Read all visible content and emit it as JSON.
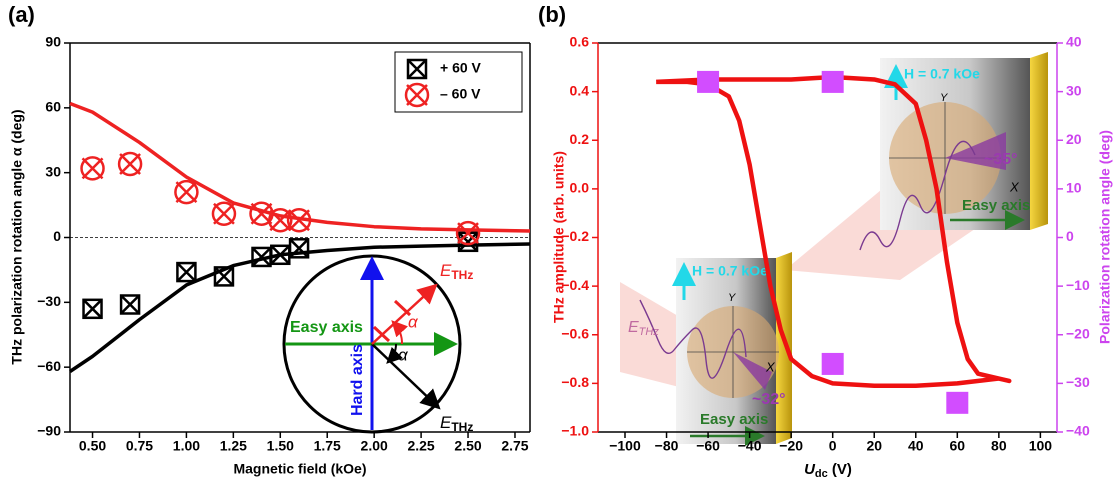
{
  "chart_data": [
    {
      "type": "scatter",
      "panel_label": "(a)",
      "xlabel": "Magnetic field (kOe)",
      "ylabel": "THz polarization rotation angle α (deg)",
      "xlim": [
        0.38,
        2.83
      ],
      "xticks": [
        {
          "value": 0.5,
          "label": "0.50"
        },
        0.75,
        {
          "value": 1,
          "label": "1.00"
        },
        1.25,
        {
          "value": 1.5,
          "label": "1.50"
        },
        1.75,
        {
          "value": 2,
          "label": "2.00"
        },
        2.25,
        {
          "value": 2.5,
          "label": "2.50"
        },
        2.75
      ],
      "ylim": [
        -90,
        90
      ],
      "yticks": [
        {
          "value": -90,
          "label": "−90"
        },
        {
          "value": -60,
          "label": "−60"
        },
        {
          "value": -30,
          "label": "−30"
        },
        0,
        30,
        60,
        90
      ],
      "zero_line": true,
      "legend": "upper right",
      "series": [
        {
          "name": "+ 60 V",
          "color": "#000000",
          "marker": "boxcross",
          "x": [
            0.5,
            0.7,
            1.0,
            1.2,
            1.4,
            1.5,
            1.6,
            2.5
          ],
          "values": [
            -33,
            -31,
            -16,
            -18,
            -9,
            -8,
            -5,
            -2
          ]
        },
        {
          "name": "– 60 V",
          "color": "#ee2222",
          "marker": "circlecross",
          "x": [
            0.5,
            0.7,
            1.0,
            1.2,
            1.4,
            1.5,
            1.6,
            2.5
          ],
          "values": [
            32,
            34,
            21,
            11,
            11,
            8,
            8,
            2
          ]
        }
      ],
      "curves": [
        {
          "color": "#ee2222",
          "x": [
            0.38,
            0.5,
            0.75,
            1.0,
            1.25,
            1.5,
            1.75,
            2.0,
            2.25,
            2.5,
            2.83
          ],
          "values": [
            62,
            58,
            44,
            28,
            16,
            10,
            7,
            5,
            4,
            3.5,
            3
          ]
        },
        {
          "color": "#000000",
          "x": [
            0.38,
            0.5,
            0.75,
            1.0,
            1.25,
            1.5,
            1.75,
            2.0,
            2.25,
            2.5,
            2.83
          ],
          "values": [
            -62,
            -55,
            -38,
            -22,
            -13,
            -8,
            -6,
            -4.5,
            -4,
            -3.5,
            -3
          ]
        }
      ],
      "inset": {
        "easy": "Easy axis",
        "hard": "Hard axis",
        "alpha": "α",
        "field": "E",
        "field_sub": "THz"
      }
    },
    {
      "type": "line",
      "panel_label": "(b)",
      "xlabel": {
        "symbol": "U",
        "subscript": "dc",
        "unit": " (V)"
      },
      "ylabel": "THz amplitude (arb. units)",
      "y2label": "Polarization rotation angle (deg)",
      "xlim": [
        -113,
        108
      ],
      "xticks": [
        {
          "value": -100,
          "label": "−100"
        },
        {
          "value": -80,
          "label": "−80"
        },
        {
          "value": -60,
          "label": "−60"
        },
        {
          "value": -40,
          "label": "−40"
        },
        {
          "value": -20,
          "label": "−20"
        },
        0,
        20,
        40,
        60,
        80,
        100
      ],
      "ylim": [
        -1.0,
        0.6
      ],
      "yticks": [
        {
          "value": -1.0,
          "label": "−1.0"
        },
        {
          "value": -0.8,
          "label": "−0.8"
        },
        {
          "value": -0.6,
          "label": "−0.6"
        },
        {
          "value": -0.4,
          "label": "−0.4"
        },
        {
          "value": -0.2,
          "label": "−0.2"
        },
        {
          "value": 0,
          "label": "0.0"
        },
        0.2,
        0.4,
        0.6
      ],
      "y2lim": [
        -40,
        40
      ],
      "y2ticks": [
        {
          "value": -40,
          "label": "−40"
        },
        {
          "value": -30,
          "label": "−30"
        },
        {
          "value": -20,
          "label": "−20"
        },
        {
          "value": -10,
          "label": "−10"
        },
        0,
        10,
        20,
        30,
        40
      ],
      "ycolor": "#ee1111",
      "y2color": "#cc44ee",
      "series": [
        {
          "color": "#ee1111",
          "x": [
            -85,
            -60,
            -40,
            -20,
            0,
            20,
            30,
            40,
            45,
            50,
            55,
            60,
            65,
            70,
            80,
            85,
            80,
            60,
            40,
            20,
            0,
            -10,
            -20,
            -25,
            -30,
            -35,
            -40,
            -45,
            -50,
            -60,
            -70,
            -85
          ],
          "values": [
            0.44,
            0.45,
            0.45,
            0.45,
            0.46,
            0.45,
            0.43,
            0.35,
            0.2,
            0.0,
            -0.3,
            -0.55,
            -0.7,
            -0.76,
            -0.78,
            -0.79,
            -0.78,
            -0.8,
            -0.81,
            -0.81,
            -0.8,
            -0.77,
            -0.7,
            -0.58,
            -0.4,
            -0.15,
            0.1,
            0.28,
            0.38,
            0.43,
            0.44,
            0.44
          ]
        },
        {
          "color": "#d24dff",
          "axis": "y2",
          "marker": "square",
          "x": [
            -60,
            0,
            0,
            60
          ],
          "values": [
            32,
            32,
            -26,
            -34
          ]
        }
      ],
      "insets": [
        {
          "field": "H = 0.7 kOe",
          "y": "Y",
          "x": "X",
          "angle": "~35°",
          "easy": "Easy axis"
        },
        {
          "field": "H = 0.7 kOe",
          "y": "Y",
          "x": "X",
          "angle": "~32°",
          "easy": "Easy axis",
          "e": "E",
          "e_sub": "THz"
        }
      ]
    }
  ]
}
